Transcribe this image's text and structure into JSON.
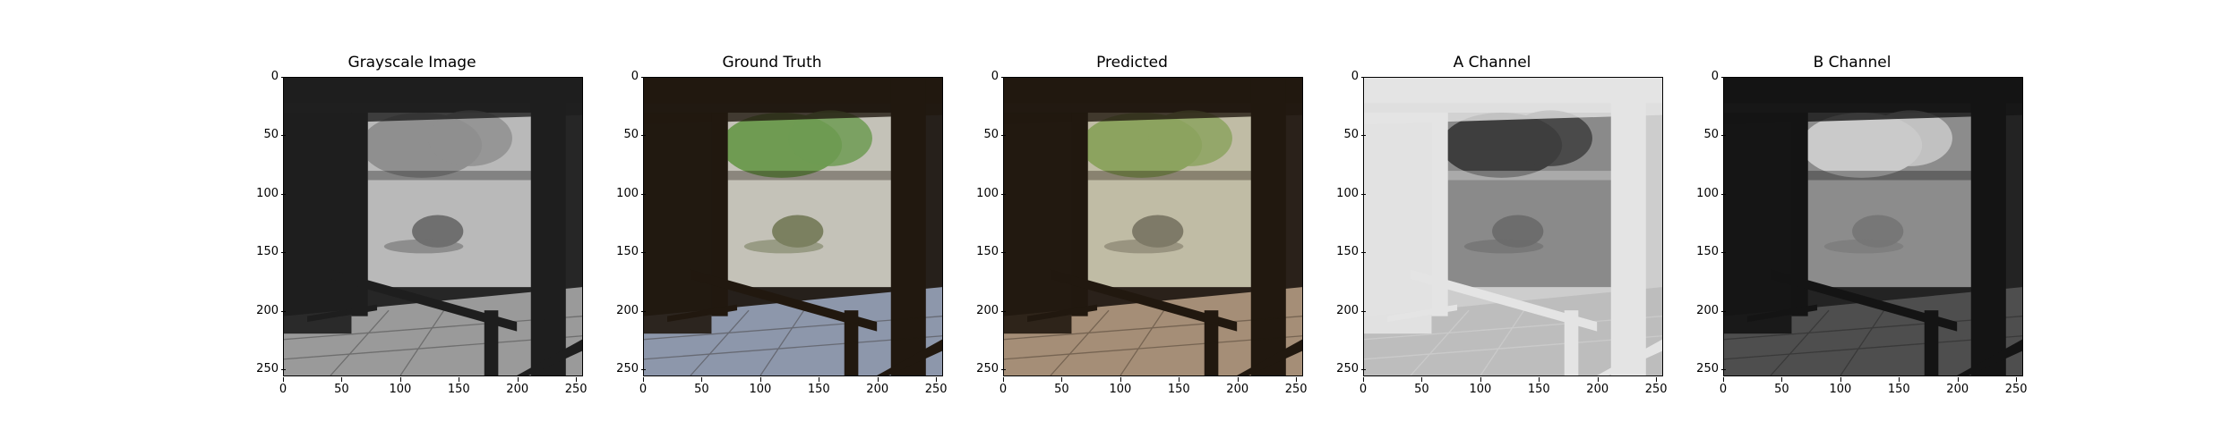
{
  "panels": [
    {
      "title": "Grayscale Image",
      "variant": "gray"
    },
    {
      "title": "Ground Truth",
      "variant": "truth"
    },
    {
      "title": "Predicted",
      "variant": "pred"
    },
    {
      "title": "A Channel",
      "variant": "achan"
    },
    {
      "title": "B Channel",
      "variant": "bchan"
    }
  ],
  "axis": {
    "y_ticks": [
      "0",
      "50",
      "100",
      "150",
      "200",
      "250"
    ],
    "x_ticks": [
      "0",
      "50",
      "100",
      "150",
      "200",
      "250"
    ],
    "range": [
      0,
      256
    ]
  },
  "colors": {
    "gray": {
      "outer": "#262626",
      "garden": "#b9b9b9",
      "tree": "#8f8f8f",
      "floor": "#9a9a9a",
      "beam": "#1e1e1e",
      "rock": "#6f6f6f"
    },
    "truth": {
      "outer": "#26201b",
      "garden": "#c4c2b8",
      "tree": "#6f9b52",
      "floor": "#8d97ab",
      "beam": "#21180f",
      "rock": "#7b8060"
    },
    "pred": {
      "outer": "#2a211a",
      "garden": "#c0bca5",
      "tree": "#8ca35f",
      "floor": "#a58e77",
      "beam": "#21180f",
      "rock": "#7e7a68"
    },
    "achan": {
      "outer": "#cdcdcd",
      "garden": "#8a8a8a",
      "tree": "#3e3e3e",
      "floor": "#bdbdbd",
      "beam": "#e4e4e4",
      "rock": "#6d6d6d"
    },
    "bchan": {
      "outer": "#232323",
      "garden": "#8c8c8c",
      "tree": "#cacaca",
      "floor": "#4e4e4e",
      "beam": "#141414",
      "rock": "#777777"
    }
  }
}
